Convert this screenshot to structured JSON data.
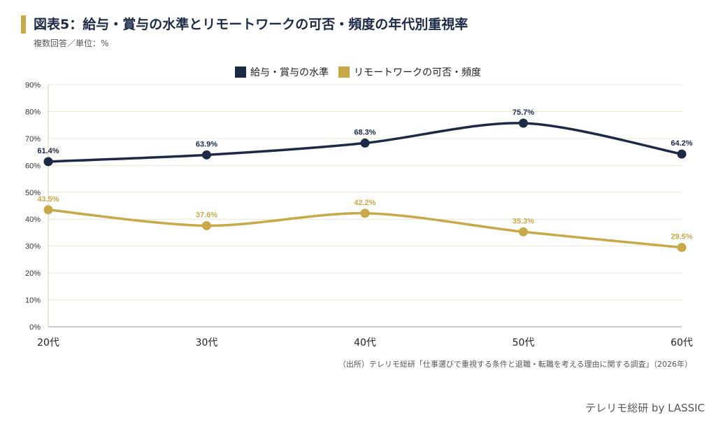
{
  "header": {
    "title": "図表5：給与・賞与の水準とリモートワークの可否・頻度の年代別重視率",
    "subtitle": "複数回答／単位：%"
  },
  "chart_data": {
    "type": "line",
    "categories": [
      "20代",
      "30代",
      "40代",
      "50代",
      "60代"
    ],
    "ylim": [
      0,
      90
    ],
    "yticks": [
      0,
      10,
      20,
      30,
      40,
      50,
      60,
      70,
      80,
      90
    ],
    "ytick_labels": [
      "0%",
      "10%",
      "20%",
      "30%",
      "40%",
      "50%",
      "60%",
      "70%",
      "80%",
      "90%"
    ],
    "grid": true,
    "legend_position": "top-center",
    "series": [
      {
        "name": "給与・賞与の水準",
        "color": "#1c2a48",
        "values": [
          61.4,
          63.9,
          68.3,
          75.7,
          64.2
        ],
        "labels": [
          "61.4%",
          "63.9%",
          "68.3%",
          "75.7%",
          "64.2%"
        ]
      },
      {
        "name": "リモートワークの可否・頻度",
        "color": "#c9a848",
        "values": [
          43.5,
          37.6,
          42.2,
          35.3,
          29.5
        ],
        "labels": [
          "43.5%",
          "37.6%",
          "42.2%",
          "35.3%",
          "29.5%"
        ]
      }
    ]
  },
  "footer": {
    "source": "（出所）テレリモ総研「仕事選びで重視する条件と退職・転職を考える理由に関する調査」（2026年）",
    "brand": "テレリモ総研 by LASSIC"
  }
}
